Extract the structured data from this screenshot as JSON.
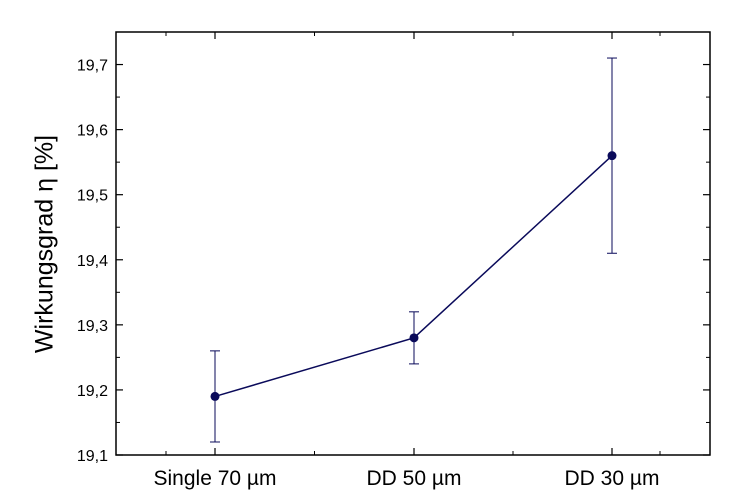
{
  "chart_data": {
    "type": "line",
    "title": "",
    "xlabel": "",
    "ylabel": "Wirkungsgrad η [%]",
    "categories": [
      "Single 70 µm",
      "DD 50 µm",
      "DD 30 µm"
    ],
    "series": [
      {
        "values": [
          19.19,
          19.28,
          19.56
        ],
        "error_low": [
          19.12,
          19.24,
          19.41
        ],
        "error_high": [
          19.26,
          19.32,
          19.71
        ],
        "color": "#0a0a5a"
      }
    ],
    "ylim": [
      19.1,
      19.75
    ],
    "yticks": [
      "19,1",
      "19,2",
      "19,3",
      "19,4",
      "19,5",
      "19,6",
      "19,7"
    ],
    "ytick_values": [
      19.1,
      19.2,
      19.3,
      19.4,
      19.5,
      19.6,
      19.7
    ],
    "grid": false,
    "legend": "none"
  }
}
